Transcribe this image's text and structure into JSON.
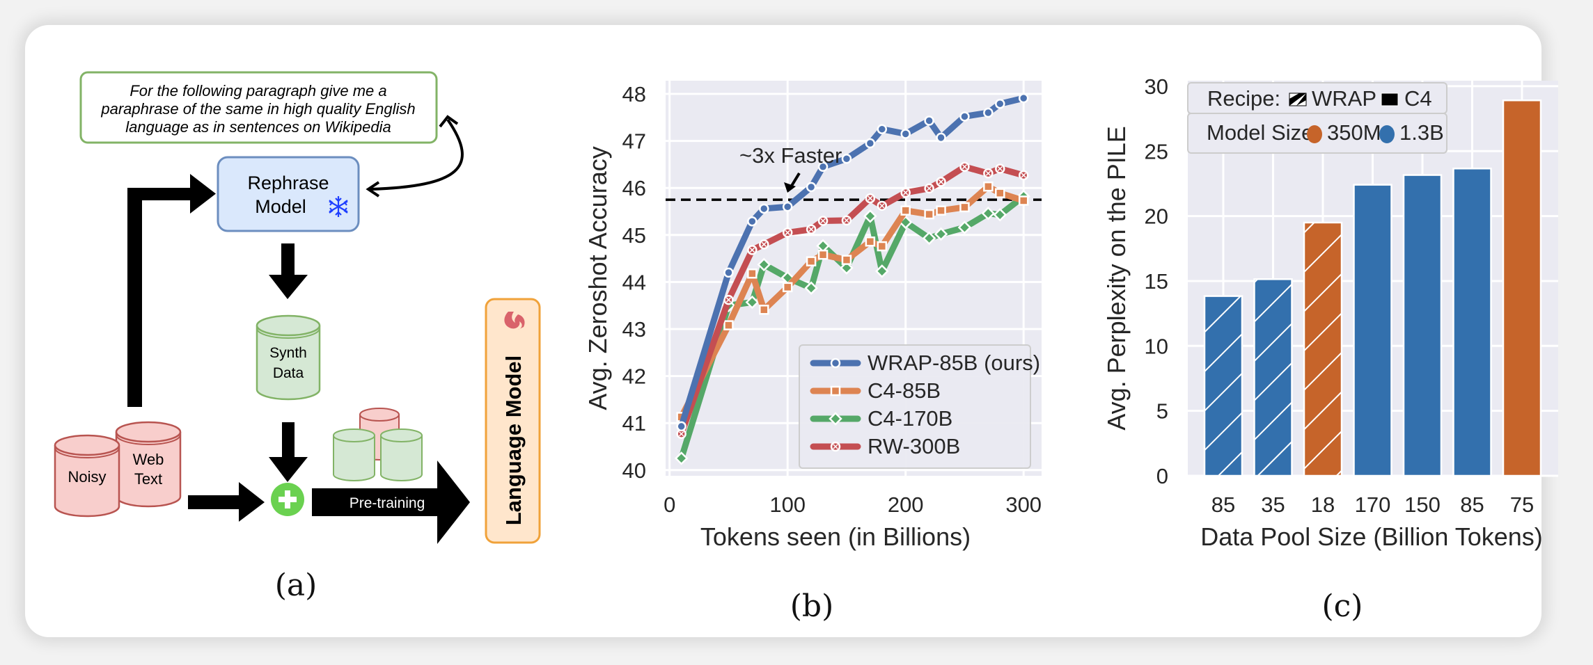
{
  "panels": {
    "a": {
      "caption": "(a)",
      "prompt_lines": [
        "For the following paragraph give me a",
        "paraphrase of the same in high quality English",
        "language as in sentences on Wikipedia"
      ],
      "rephrase_model": [
        "Rephrase",
        "Model"
      ],
      "rephrase_icon": "snowflake-icon",
      "synth_data": [
        "Synth",
        "Data"
      ],
      "noisy": "Noisy",
      "web_text": [
        "Web",
        "Text"
      ],
      "pretraining_label": "Pre-training",
      "language_model": "Language Model",
      "language_model_icon": "flame-icon",
      "colors": {
        "prompt_border": "#82b366",
        "rephrase_fill": "#dae8fc",
        "rephrase_border": "#6c8ebf",
        "snowflake": "#1f3fff",
        "green_fill": "#d5e8d4",
        "green_border": "#82b366",
        "red_fill": "#f8cecc",
        "red_border": "#b85450",
        "plus": "#6ad150",
        "lm_fill": "#ffe6cc",
        "lm_border": "#f0a23a"
      }
    },
    "b": {
      "caption": "(b)"
    },
    "c": {
      "caption": "(c)"
    }
  },
  "chart_data": [
    {
      "type": "line",
      "title": "",
      "xlabel": "Tokens seen (in Billions)",
      "ylabel": "Avg. Zeroshot Accuracy",
      "xlim": [
        -5,
        310
      ],
      "ylim": [
        39.9,
        48.2
      ],
      "xticks": [
        0,
        100,
        200,
        300
      ],
      "yticks": [
        40,
        41,
        42,
        43,
        44,
        45,
        46,
        47,
        48
      ],
      "grid": true,
      "legend_position": "bottom-right",
      "reference_line": {
        "y": 45.75,
        "style": "dashed",
        "color": "#000000"
      },
      "annotation": {
        "text": "~3x Faster",
        "arrow_to": [
          100,
          45.75
        ]
      },
      "x": [
        10,
        50,
        70,
        80,
        100,
        120,
        130,
        150,
        170,
        180,
        200,
        220,
        230,
        250,
        270,
        280,
        300
      ],
      "series": [
        {
          "name": "WRAP-85B (ours)",
          "color": "#4c72b0",
          "marker": "circle",
          "values": [
            40.93,
            44.2,
            45.29,
            45.56,
            45.6,
            46.02,
            46.45,
            46.62,
            46.95,
            47.25,
            47.15,
            47.43,
            47.07,
            47.52,
            47.6,
            47.79,
            47.91
          ]
        },
        {
          "name": "C4-85B",
          "color": "#dd8452",
          "marker": "square",
          "values": [
            41.13,
            43.08,
            44.18,
            43.41,
            43.89,
            44.44,
            44.58,
            44.47,
            44.86,
            44.76,
            45.52,
            45.44,
            45.52,
            45.59,
            46.03,
            45.89,
            45.73
          ]
        },
        {
          "name": "C4-170B",
          "color": "#55a868",
          "marker": "diamond",
          "values": [
            40.25,
            43.5,
            43.57,
            44.37,
            44.09,
            43.87,
            44.77,
            44.3,
            45.4,
            44.23,
            45.27,
            44.93,
            45.02,
            45.16,
            45.46,
            45.43,
            45.82
          ]
        },
        {
          "name": "RW-300B",
          "color": "#c44e52",
          "marker": "x",
          "values": [
            40.77,
            43.62,
            44.68,
            44.8,
            45.05,
            45.12,
            45.3,
            45.31,
            45.78,
            45.62,
            45.9,
            45.99,
            46.13,
            46.45,
            46.31,
            46.41,
            46.27
          ]
        }
      ]
    },
    {
      "type": "bar",
      "title": "",
      "xlabel": "Data Pool Size (Billion Tokens)",
      "ylabel": "Avg. Perplexity on the PILE",
      "ylim": [
        0,
        30
      ],
      "yticks": [
        0,
        5,
        10,
        15,
        20,
        25,
        30
      ],
      "grid": true,
      "legend_position": "top-left",
      "legend": {
        "recipe_label": "Recipe:",
        "recipe_items": [
          {
            "name": "WRAP",
            "pattern": "hatched"
          },
          {
            "name": "C4",
            "pattern": "solid"
          }
        ],
        "size_label": "Model Size:",
        "size_items": [
          {
            "name": "350M",
            "color": "#c6642a"
          },
          {
            "name": "1.3B",
            "color": "#3370ad"
          }
        ]
      },
      "categories": [
        "85",
        "35",
        "18",
        "170",
        "150",
        "85",
        "75"
      ],
      "values": [
        13.84,
        15.14,
        19.5,
        22.41,
        23.16,
        23.66,
        28.91
      ],
      "recipe": [
        "WRAP",
        "WRAP",
        "WRAP",
        "C4",
        "C4",
        "C4",
        "C4"
      ],
      "model_size": [
        "1.3B",
        "1.3B",
        "350M",
        "1.3B",
        "1.3B",
        "1.3B",
        "350M"
      ]
    }
  ]
}
